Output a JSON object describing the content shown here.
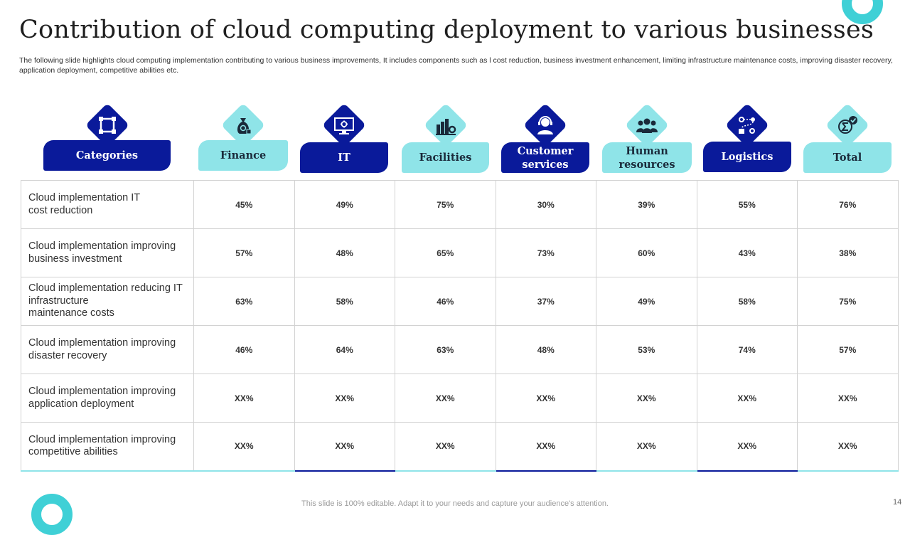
{
  "title": "Contribution of cloud computing deployment to various businesses",
  "subtitle": "The following slide highlights cloud computing implementation contributing to various business improvements, It includes components such as l cost reduction, business investment enhancement, limiting infrastructure maintenance costs, improving disaster recovery, application deployment, competitive abilities etc.",
  "colors": {
    "dark": "#0a1a9a",
    "light": "#8fe4e8",
    "ring": "#3fd0d6"
  },
  "headers": [
    {
      "label": "Categories",
      "icon": "grid-icon",
      "style": "dark"
    },
    {
      "label": "Finance",
      "icon": "money-bag-icon",
      "style": "light"
    },
    {
      "label": "IT",
      "icon": "monitor-gear-icon",
      "style": "dark"
    },
    {
      "label": "Facilities",
      "icon": "factory-gear-icon",
      "style": "light"
    },
    {
      "label": "Customer services",
      "icon": "support-agent-icon",
      "style": "dark"
    },
    {
      "label": "Human resources",
      "icon": "people-group-icon",
      "style": "light"
    },
    {
      "label": "Logistics",
      "icon": "route-icon",
      "style": "dark"
    },
    {
      "label": "Total",
      "icon": "sigma-check-icon",
      "style": "light"
    }
  ],
  "rows": [
    {
      "label": "Cloud implementation IT\ncost reduction",
      "values": [
        "45%",
        "49%",
        "75%",
        "30%",
        "39%",
        "55%",
        "76%"
      ]
    },
    {
      "label": "Cloud implementation improving\nbusiness investment",
      "values": [
        "57%",
        "48%",
        "65%",
        "73%",
        "60%",
        "43%",
        "38%"
      ]
    },
    {
      "label": "Cloud implementation reducing IT\ninfrastructure\nmaintenance costs",
      "values": [
        "63%",
        "58%",
        "46%",
        "37%",
        "49%",
        "58%",
        "75%"
      ]
    },
    {
      "label": "Cloud implementation improving\ndisaster recovery",
      "values": [
        "46%",
        "64%",
        "63%",
        "48%",
        "53%",
        "74%",
        "57%"
      ]
    },
    {
      "label": "Cloud implementation improving\napplication deployment",
      "values": [
        "XX%",
        "XX%",
        "XX%",
        "XX%",
        "XX%",
        "XX%",
        "XX%"
      ]
    },
    {
      "label": "Cloud implementation improving\ncompetitive abilities",
      "values": [
        "XX%",
        "XX%",
        "XX%",
        "XX%",
        "XX%",
        "XX%",
        "XX%"
      ]
    }
  ],
  "footer": "This slide is 100% editable. Adapt it to your needs and capture your audience's attention.",
  "page_number": "14"
}
